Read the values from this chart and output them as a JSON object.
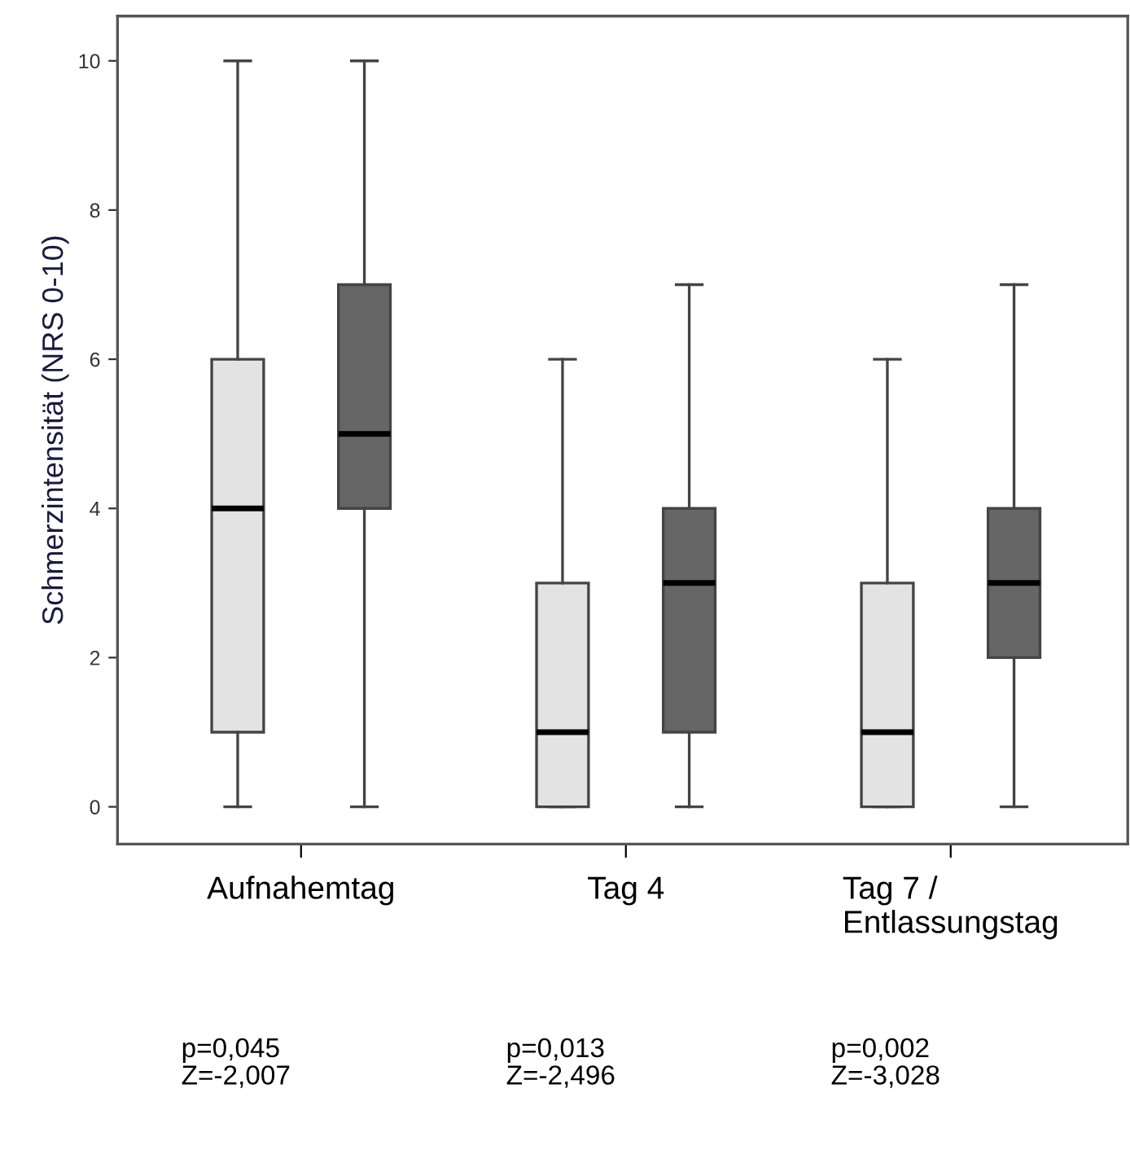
{
  "chart_data": {
    "type": "box",
    "ylabel": "Schmerzintensität (NRS 0-10)",
    "categories": [
      "Aufnahemtag",
      "Tag 4",
      "Tag 7 /\nEntlassungstag"
    ],
    "series": [
      {
        "color": "#e3e3e3",
        "boxes": [
          {
            "low": 0,
            "q1": 1,
            "median": 4,
            "q3": 6,
            "high": 10
          },
          {
            "low": 0,
            "q1": 0,
            "median": 1,
            "q3": 3,
            "high": 6
          },
          {
            "low": 0,
            "q1": 0,
            "median": 1,
            "q3": 3,
            "high": 6
          }
        ]
      },
      {
        "color": "#666666",
        "boxes": [
          {
            "low": 0,
            "q1": 4,
            "median": 5,
            "q3": 7,
            "high": 10
          },
          {
            "low": 0,
            "q1": 1,
            "median": 3,
            "q3": 4,
            "high": 7
          },
          {
            "low": 0,
            "q1": 2,
            "median": 3,
            "q3": 4,
            "high": 7
          }
        ]
      }
    ],
    "ylim": [
      -0.5,
      10.6
    ],
    "yticks": [
      0,
      2,
      4,
      6,
      8,
      10
    ],
    "grid": false,
    "legend": false,
    "annotations": [
      "p=0,045\nZ=-2,007",
      "p=0,013\nZ=-2,496",
      "p=0,002\nZ=-3,028"
    ]
  }
}
